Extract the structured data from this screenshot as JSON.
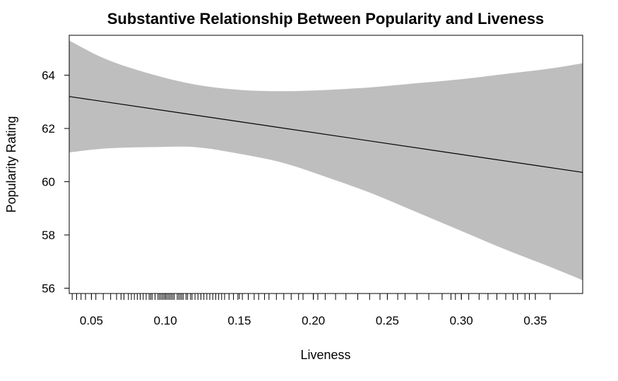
{
  "chart_data": {
    "type": "line",
    "title": "Substantive Relationship Between Popularity and Liveness",
    "xlabel": "Liveness",
    "ylabel": "Popularity Rating",
    "xlim": [
      0.035,
      0.382
    ],
    "ylim": [
      55.8,
      65.5
    ],
    "xticks": [
      "0.05",
      "0.10",
      "0.15",
      "0.20",
      "0.25",
      "0.30",
      "0.35"
    ],
    "yticks": [
      "56",
      "58",
      "60",
      "62",
      "64"
    ],
    "grid": false,
    "fit_line": {
      "x": [
        0.035,
        0.382
      ],
      "y": [
        63.2,
        60.35
      ]
    },
    "confidence_band": {
      "x": [
        0.035,
        0.06,
        0.09,
        0.12,
        0.15,
        0.18,
        0.21,
        0.24,
        0.27,
        0.3,
        0.33,
        0.36,
        0.382
      ],
      "upper": [
        65.3,
        64.6,
        64.05,
        63.65,
        63.45,
        63.4,
        63.45,
        63.55,
        63.7,
        63.85,
        64.05,
        64.25,
        64.45
      ],
      "lower": [
        61.1,
        61.25,
        61.3,
        61.3,
        61.05,
        60.7,
        60.15,
        59.55,
        58.85,
        58.15,
        57.45,
        56.8,
        56.3
      ]
    },
    "rug": [
      0.037,
      0.04,
      0.043,
      0.046,
      0.05,
      0.053,
      0.058,
      0.063,
      0.067,
      0.07,
      0.072,
      0.075,
      0.077,
      0.079,
      0.081,
      0.083,
      0.085,
      0.087,
      0.089,
      0.09,
      0.091,
      0.093,
      0.095,
      0.096,
      0.097,
      0.098,
      0.099,
      0.1,
      0.101,
      0.102,
      0.103,
      0.104,
      0.105,
      0.106,
      0.108,
      0.109,
      0.11,
      0.111,
      0.112,
      0.114,
      0.115,
      0.117,
      0.118,
      0.12,
      0.122,
      0.124,
      0.126,
      0.128,
      0.13,
      0.132,
      0.134,
      0.136,
      0.138,
      0.14,
      0.143,
      0.146,
      0.149,
      0.152,
      0.156,
      0.16,
      0.163,
      0.167,
      0.17,
      0.175,
      0.18,
      0.185,
      0.19,
      0.193,
      0.2,
      0.203,
      0.208,
      0.215,
      0.222,
      0.23,
      0.238,
      0.245,
      0.25,
      0.257,
      0.262,
      0.27,
      0.278,
      0.287,
      0.293,
      0.296,
      0.3,
      0.305,
      0.312,
      0.318,
      0.324,
      0.33,
      0.335,
      0.338,
      0.343,
      0.346,
      0.35,
      0.36
    ]
  }
}
